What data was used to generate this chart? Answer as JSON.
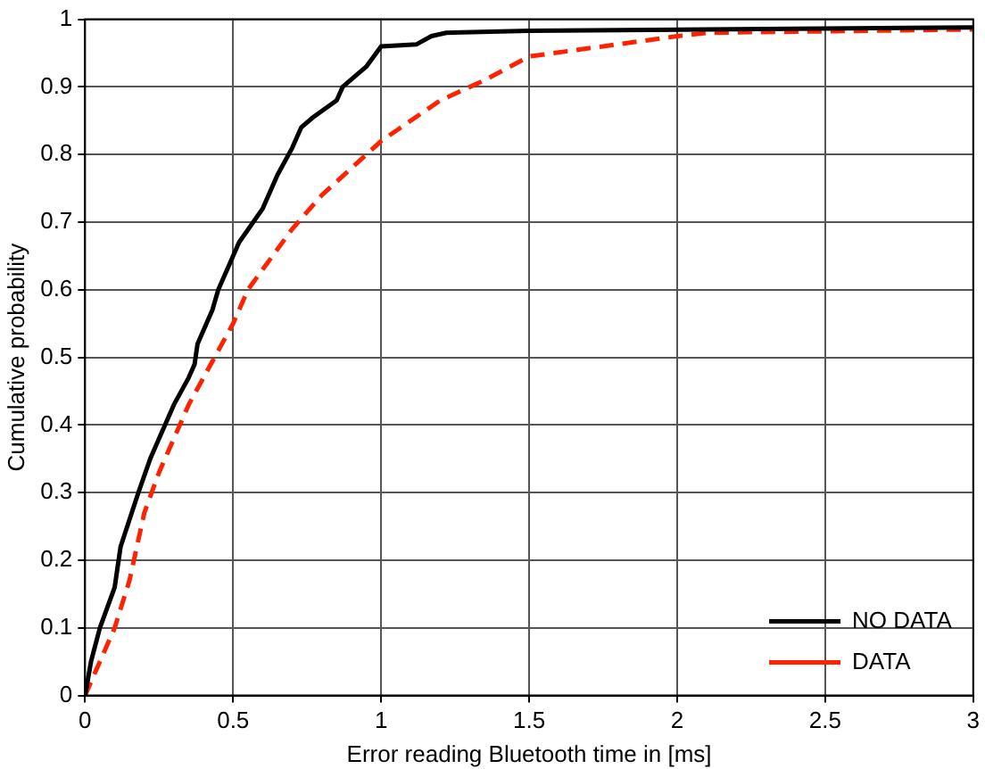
{
  "chart_data": {
    "type": "line",
    "xlabel": "Error reading Bluetooth time in [ms]",
    "ylabel": "Cumulative probability",
    "xlim": [
      0,
      3
    ],
    "xticks": [
      0,
      0.5,
      1,
      1.5,
      2,
      2.5,
      3
    ],
    "ylim": [
      0,
      1
    ],
    "yticks": [
      0,
      0.1,
      0.2,
      0.3,
      0.4,
      0.5,
      0.6,
      0.7,
      0.8,
      0.9,
      1
    ],
    "grid": true,
    "legend": "bottom right",
    "series": [
      {
        "name": "NO DATA",
        "color": "#000000",
        "line_style": "solid",
        "x": [
          0,
          0.02,
          0.05,
          0.1,
          0.12,
          0.15,
          0.18,
          0.22,
          0.25,
          0.3,
          0.35,
          0.37,
          0.38,
          0.43,
          0.45,
          0.5,
          0.52,
          0.6,
          0.65,
          0.7,
          0.73,
          0.77,
          0.85,
          0.87,
          0.95,
          1.0,
          1.12,
          1.17,
          1.22,
          1.5,
          2.1,
          3
        ],
        "values": [
          0,
          0.05,
          0.1,
          0.16,
          0.22,
          0.26,
          0.3,
          0.35,
          0.38,
          0.43,
          0.47,
          0.49,
          0.52,
          0.57,
          0.6,
          0.65,
          0.67,
          0.72,
          0.77,
          0.81,
          0.84,
          0.855,
          0.88,
          0.9,
          0.93,
          0.96,
          0.963,
          0.975,
          0.98,
          0.983,
          0.985,
          0.988
        ]
      },
      {
        "name": "DATA",
        "color": "#ff2200",
        "line_style": "dashed",
        "x": [
          0,
          0.05,
          0.1,
          0.15,
          0.2,
          0.25,
          0.3,
          0.35,
          0.4,
          0.45,
          0.5,
          0.55,
          0.6,
          0.7,
          0.8,
          0.9,
          1.0,
          1.1,
          1.2,
          1.35,
          1.5,
          1.75,
          2.0,
          2.1,
          3
        ],
        "values": [
          0,
          0.05,
          0.1,
          0.17,
          0.27,
          0.33,
          0.38,
          0.43,
          0.47,
          0.51,
          0.55,
          0.6,
          0.63,
          0.69,
          0.74,
          0.78,
          0.82,
          0.85,
          0.88,
          0.91,
          0.945,
          0.96,
          0.975,
          0.98,
          0.985
        ]
      }
    ]
  }
}
